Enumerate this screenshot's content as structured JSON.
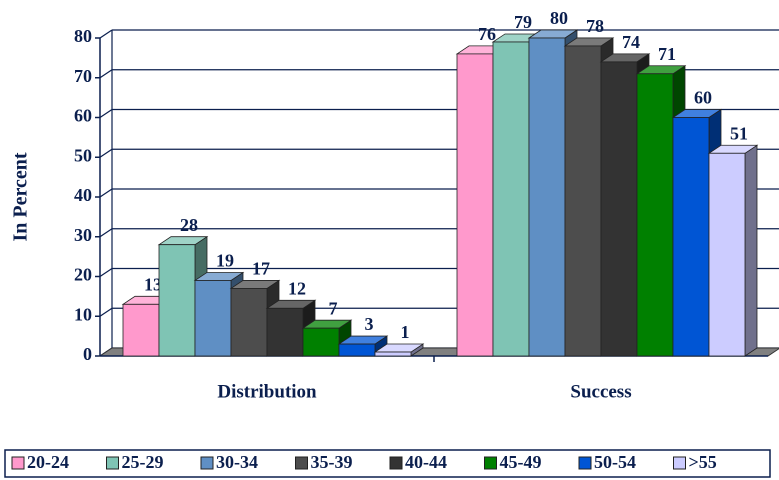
{
  "chart_data": {
    "type": "bar3d",
    "y_label": "In Percent",
    "categories": [
      "Distribution",
      "Success"
    ],
    "series": [
      {
        "name": "20-24",
        "color": "#ff99cc",
        "values": [
          13,
          76
        ]
      },
      {
        "name": "25-29",
        "color": "#7fc4b4",
        "values": [
          28,
          79
        ]
      },
      {
        "name": "30-34",
        "color": "#5f8fc4",
        "values": [
          19,
          80
        ]
      },
      {
        "name": "35-39",
        "color": "#4d4d4d",
        "values": [
          17,
          78
        ]
      },
      {
        "name": "40-44",
        "color": "#333333",
        "values": [
          12,
          74
        ]
      },
      {
        "name": "45-49",
        "color": "#008000",
        "values": [
          7,
          71
        ]
      },
      {
        "name": "50-54",
        "color": "#0055d4",
        "values": [
          3,
          60
        ]
      },
      {
        "name": ">55",
        "color": "#ccccff",
        "values": [
          1,
          51
        ]
      }
    ],
    "ylim": [
      0,
      80
    ],
    "yticks": [
      0,
      10,
      20,
      30,
      40,
      50,
      60,
      70,
      80
    ],
    "grid": true,
    "legend": "bottom"
  }
}
